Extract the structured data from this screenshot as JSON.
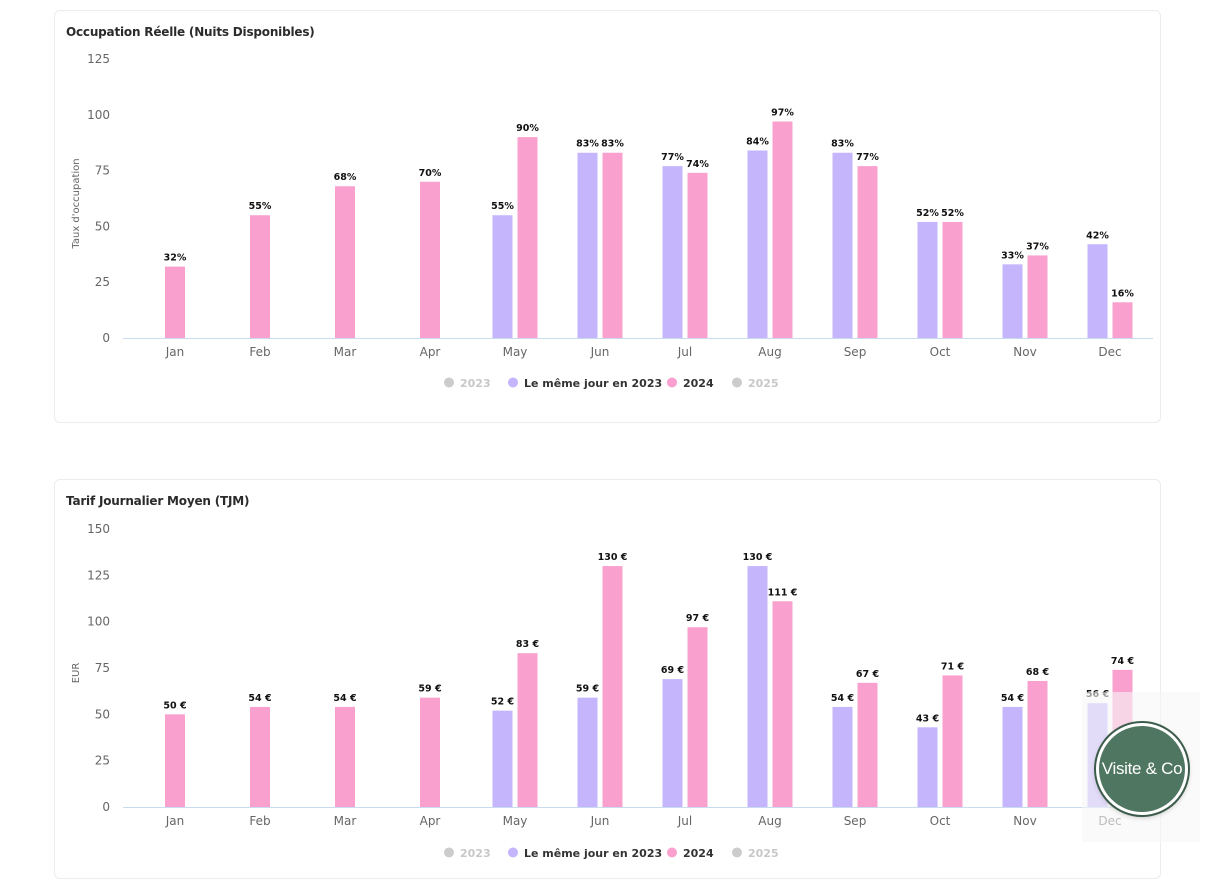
{
  "colors": {
    "c2023": "#cccccc",
    "same_day_2023": "#c4b5fd",
    "c2024": "#f9a0cf",
    "c2025": "#cccccc",
    "axis_text": "#666666",
    "label_text": "#111111",
    "baseline": "#c9dbee"
  },
  "legend_items": [
    {
      "label": "2023",
      "color": "#cccccc",
      "muted": true
    },
    {
      "label": "Le même jour en 2023",
      "color": "#c4b5fd",
      "muted": false
    },
    {
      "label": "2024",
      "color": "#f9a0cf",
      "muted": false
    },
    {
      "label": "2025",
      "color": "#cccccc",
      "muted": true
    }
  ],
  "chart_data": [
    {
      "type": "bar",
      "title": "Occupation Réelle (Nuits Disponibles)",
      "ylabel": "Taux d'occupation",
      "xlabel": "",
      "ylim": [
        0,
        125
      ],
      "yticks": [
        0,
        25,
        50,
        75,
        100,
        125
      ],
      "grid": false,
      "legend": "bottom",
      "label_suffix": "%",
      "label_prefix_space": false,
      "categories": [
        "Jan",
        "Feb",
        "Mar",
        "Apr",
        "May",
        "Jun",
        "Jul",
        "Aug",
        "Sep",
        "Oct",
        "Nov",
        "Dec"
      ],
      "series": [
        {
          "name": "Le même jour en 2023",
          "color_key": "same_day_2023",
          "values": [
            null,
            null,
            null,
            null,
            55,
            83,
            77,
            84,
            83,
            52,
            33,
            42
          ]
        },
        {
          "name": "2024",
          "color_key": "c2024",
          "values": [
            32,
            55,
            68,
            70,
            90,
            83,
            74,
            97,
            77,
            52,
            37,
            16
          ]
        }
      ]
    },
    {
      "type": "bar",
      "title": "Tarif Journalier Moyen (TJM)",
      "ylabel": "EUR",
      "xlabel": "",
      "ylim": [
        0,
        150
      ],
      "yticks": [
        0,
        25,
        50,
        75,
        100,
        125,
        150
      ],
      "grid": false,
      "legend": "bottom",
      "label_suffix": " €",
      "categories": [
        "Jan",
        "Feb",
        "Mar",
        "Apr",
        "May",
        "Jun",
        "Jul",
        "Aug",
        "Sep",
        "Oct",
        "Nov",
        "Dec"
      ],
      "series": [
        {
          "name": "Le même jour en 2023",
          "color_key": "same_day_2023",
          "values": [
            null,
            null,
            null,
            null,
            52,
            59,
            69,
            130,
            54,
            43,
            54,
            56
          ]
        },
        {
          "name": "2024",
          "color_key": "c2024",
          "values": [
            50,
            54,
            54,
            59,
            83,
            130,
            97,
            111,
            67,
            71,
            68,
            74
          ]
        }
      ]
    }
  ],
  "logo": {
    "text": "Visite & Co"
  }
}
